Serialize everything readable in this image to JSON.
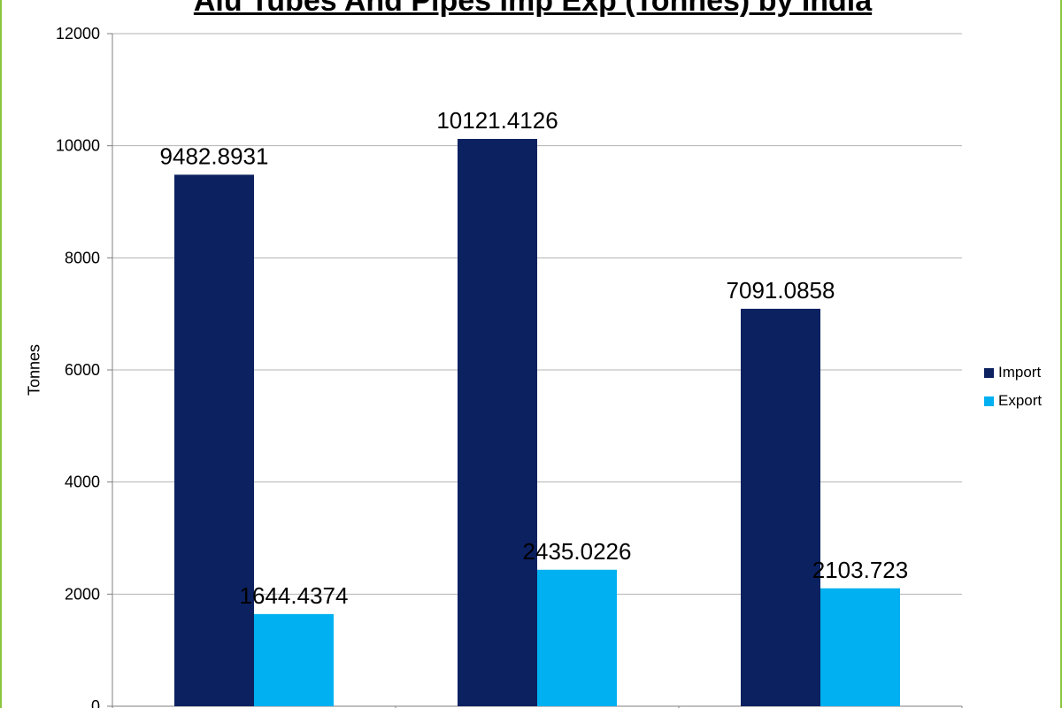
{
  "chart_data": {
    "type": "bar",
    "title": "Alu Tubes And Pipes Imp Exp (Tonnes) by India",
    "xlabel": "",
    "ylabel": "Tonnes",
    "ylim": [
      0,
      12000
    ],
    "yticks": [
      "0",
      "2000",
      "4000",
      "6000",
      "8000",
      "10000",
      "12000"
    ],
    "categories": [
      "",
      "",
      ""
    ],
    "series": [
      {
        "name": "Import",
        "color": "#0c2160",
        "values": [
          9482.8931,
          10121.4126,
          7091.0858
        ],
        "labels": [
          "9482.8931",
          "10121.4126",
          "7091.0858"
        ]
      },
      {
        "name": "Export",
        "color": "#00b0f0",
        "values": [
          1644.4374,
          2435.0226,
          2103.723
        ],
        "labels": [
          "1644.4374",
          "2435.0226",
          "2103.723"
        ]
      }
    ],
    "grid": true,
    "legend": "right"
  }
}
